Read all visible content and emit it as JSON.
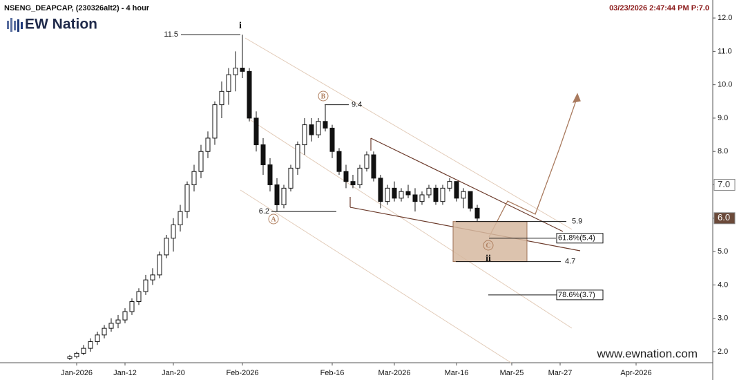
{
  "header": {
    "symbol": "NSENG_DEAPCAP, (230326alt2) - 4 hour",
    "timestamp": "03/23/2026 2:47:44 PM  P:7.0",
    "brand": "EW Nation",
    "watermark": "www.ewnation.com"
  },
  "chart_data": {
    "type": "candlestick",
    "categories": [
      null,
      "Jan-2026",
      null,
      null,
      null,
      null,
      null,
      null,
      "Jan-12",
      null,
      null,
      null,
      null,
      null,
      null,
      "Jan-20",
      null,
      null,
      null,
      null,
      null,
      null,
      null,
      null,
      null,
      "Feb-2026",
      null,
      null,
      null,
      null,
      null,
      null,
      null,
      null,
      null,
      null,
      null,
      null,
      "Feb-16",
      null,
      null,
      null,
      null,
      null,
      null,
      null,
      null,
      "Mar-2026",
      null,
      null,
      null,
      null,
      null,
      null,
      null,
      null,
      "Mar-16",
      null,
      null,
      null,
      null,
      null,
      null,
      null,
      "Mar-25",
      null,
      null,
      null,
      null,
      null,
      null,
      "Mar-27",
      null,
      null,
      null,
      null,
      null,
      null,
      null,
      null,
      null,
      null,
      "Apr-2026"
    ],
    "open": [
      1.8,
      1.85,
      1.95,
      2.1,
      2.3,
      2.5,
      2.7,
      2.85,
      2.95,
      3.2,
      3.5,
      3.8,
      4.15,
      4.3,
      4.9,
      5.4,
      5.8,
      6.2,
      7.0,
      7.4,
      8.0,
      8.4,
      9.4,
      9.8,
      10.3,
      10.5,
      10.4,
      9.0,
      8.2,
      7.6,
      7.0,
      6.4,
      6.9,
      7.5,
      8.2,
      8.8,
      8.5,
      8.9,
      8.7,
      8.0,
      7.4,
      7.1,
      7.0,
      7.5,
      7.9,
      7.2,
      6.5,
      6.9,
      6.6,
      6.8,
      6.7,
      6.5,
      6.7,
      6.9,
      6.5,
      6.9,
      7.1,
      6.6,
      6.8,
      6.3,
      null,
      null,
      null,
      null,
      null,
      null,
      null,
      null,
      null,
      null,
      null,
      null,
      null,
      null,
      null,
      null,
      null,
      null,
      null,
      null,
      null,
      null,
      null
    ],
    "high": [
      1.9,
      2.0,
      2.2,
      2.4,
      2.6,
      2.8,
      3.0,
      3.1,
      3.3,
      3.6,
      3.9,
      4.3,
      4.5,
      5.0,
      5.5,
      6.0,
      6.4,
      7.1,
      7.6,
      8.2,
      8.6,
      9.5,
      10.1,
      10.5,
      11.0,
      11.5,
      10.5,
      9.2,
      8.4,
      7.8,
      7.2,
      7.0,
      7.6,
      8.3,
      9.0,
      9.0,
      9.0,
      9.4,
      8.8,
      8.1,
      7.6,
      7.3,
      7.6,
      8.0,
      8.0,
      7.3,
      7.0,
      7.1,
      6.9,
      7.0,
      6.9,
      6.8,
      7.0,
      7.0,
      7.0,
      7.2,
      7.1,
      6.9,
      6.8,
      6.4,
      null,
      null,
      null,
      null,
      null,
      null,
      null,
      null,
      null,
      null,
      null,
      null,
      null,
      null,
      null,
      null,
      null,
      null,
      null,
      null,
      null,
      null,
      null
    ],
    "low": [
      1.75,
      1.8,
      1.9,
      2.0,
      2.2,
      2.4,
      2.6,
      2.7,
      2.85,
      3.1,
      3.4,
      3.7,
      4.0,
      4.2,
      4.8,
      5.0,
      5.6,
      6.0,
      6.8,
      7.2,
      7.8,
      8.2,
      9.0,
      9.4,
      9.8,
      10.2,
      8.9,
      8.0,
      7.3,
      6.8,
      6.2,
      6.3,
      6.8,
      7.3,
      7.9,
      8.3,
      8.4,
      8.6,
      7.8,
      7.3,
      6.9,
      6.9,
      6.9,
      7.4,
      7.1,
      6.3,
      6.4,
      6.5,
      6.5,
      6.6,
      6.2,
      6.4,
      6.6,
      6.4,
      6.4,
      6.8,
      6.5,
      6.3,
      6.2,
      5.9,
      null,
      null,
      null,
      null,
      null,
      null,
      null,
      null,
      null,
      null,
      null,
      null,
      null,
      null,
      null,
      null,
      null,
      null,
      null,
      null,
      null,
      null,
      null
    ],
    "close": [
      1.85,
      1.95,
      2.1,
      2.3,
      2.5,
      2.7,
      2.85,
      2.95,
      3.2,
      3.5,
      3.8,
      4.15,
      4.3,
      4.9,
      5.4,
      5.8,
      6.2,
      7.0,
      7.4,
      8.0,
      8.4,
      9.4,
      9.8,
      10.3,
      10.5,
      10.4,
      9.0,
      8.2,
      7.6,
      7.0,
      6.4,
      6.9,
      7.5,
      8.2,
      8.8,
      8.5,
      8.9,
      8.7,
      8.0,
      7.4,
      7.1,
      7.0,
      7.5,
      7.9,
      7.2,
      6.5,
      6.9,
      6.6,
      6.8,
      6.7,
      6.5,
      6.7,
      6.9,
      6.5,
      6.9,
      7.1,
      6.6,
      6.8,
      6.3,
      6.0,
      null,
      null,
      null,
      null,
      null,
      null,
      null,
      null,
      null,
      null,
      null,
      null,
      null,
      null,
      null,
      null,
      null,
      null,
      null,
      null,
      null,
      null,
      null
    ],
    "up_color": "#ffffff",
    "down_color": "#111111",
    "wick_color": "#111111",
    "ylim": [
      1.15,
      12.54
    ],
    "yticks": [
      {
        "value": 12,
        "label": "12.0"
      },
      {
        "value": 11,
        "label": "11.0"
      },
      {
        "value": 10,
        "label": "10.0"
      },
      {
        "value": 9,
        "label": "9.0"
      },
      {
        "value": 8,
        "label": "8.0"
      },
      {
        "value": 7,
        "label": "7.0"
      },
      {
        "value": 6,
        "label": "6.0"
      },
      {
        "value": 5,
        "label": "5.0"
      },
      {
        "value": 4,
        "label": "4.0"
      },
      {
        "value": 3,
        "label": "3.0"
      },
      {
        "value": 2,
        "label": "2.0"
      }
    ],
    "price_tags": [
      {
        "value": 7,
        "label": "7.0"
      },
      {
        "value": 6,
        "label": "6.0"
      }
    ],
    "levels": [
      {
        "value": 11.5
      },
      {
        "value": 9.4
      },
      {
        "value": 6.2
      },
      {
        "value": 5.9
      },
      {
        "value": 4.7
      },
      {
        "value": 5.4,
        "label": "61.8%(5.4)"
      },
      {
        "value": 3.7,
        "label": "78.6%(3.7)"
      }
    ],
    "wave_labels": [
      "i",
      "A",
      "B",
      "C",
      "ii"
    ]
  }
}
